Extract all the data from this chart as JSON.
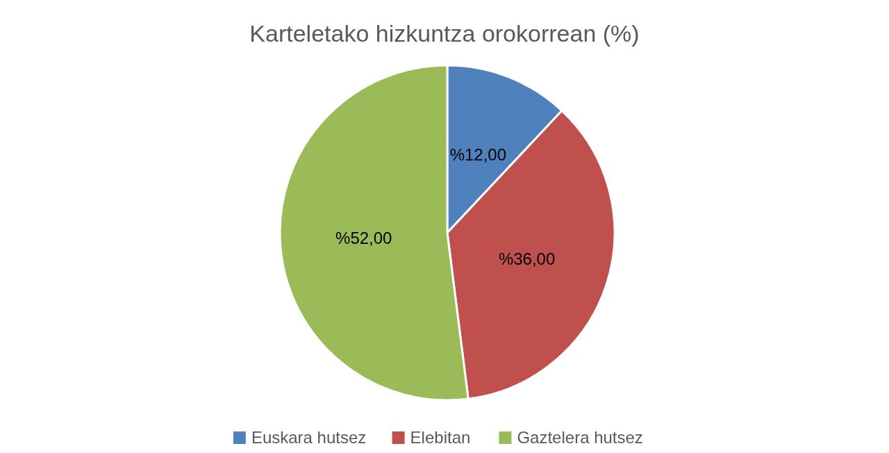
{
  "chart_data": {
    "type": "pie",
    "title": "Karteletako hizkuntza orokorrean (%)",
    "categories": [
      "Euskara hutsez",
      "Elebitan",
      "Gaztelera hutsez"
    ],
    "values": [
      12,
      36,
      52
    ],
    "colors": [
      "#4f81bd",
      "#c0504d",
      "#9bbb59"
    ],
    "value_labels": [
      "%12,00",
      "%36,00",
      "%52,00"
    ],
    "legend": "bottom"
  }
}
